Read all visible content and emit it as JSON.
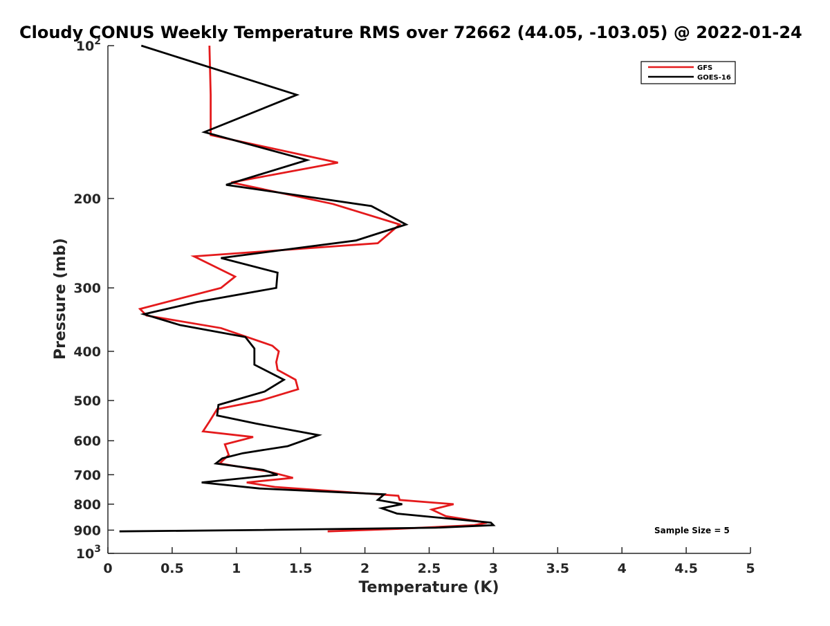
{
  "chart_data": {
    "type": "line",
    "title": "Cloudy CONUS Weekly Temperature RMS over 72662 (44.05, -103.05) @ 2022-01-24",
    "xlabel": "Temperature (K)",
    "ylabel": "Pressure (mb)",
    "xlim": [
      0,
      5
    ],
    "ylim": [
      100,
      1000
    ],
    "y_scale": "log",
    "y_reversed": true,
    "grid": false,
    "legend_position": "top-right",
    "x_ticks": [
      {
        "value": 0,
        "label": "0"
      },
      {
        "value": 0.5,
        "label": "0.5"
      },
      {
        "value": 1,
        "label": "1"
      },
      {
        "value": 1.5,
        "label": "1.5"
      },
      {
        "value": 2,
        "label": "2"
      },
      {
        "value": 2.5,
        "label": "2.5"
      },
      {
        "value": 3,
        "label": "3"
      },
      {
        "value": 3.5,
        "label": "3.5"
      },
      {
        "value": 4,
        "label": "4"
      },
      {
        "value": 4.5,
        "label": "4.5"
      },
      {
        "value": 5,
        "label": "5"
      }
    ],
    "y_ticks": [
      {
        "value": 100,
        "base": "10",
        "exp": "2"
      },
      {
        "value": 200,
        "label": "200"
      },
      {
        "value": 300,
        "label": "300"
      },
      {
        "value": 400,
        "label": "400"
      },
      {
        "value": 500,
        "label": "500"
      },
      {
        "value": 600,
        "label": "600"
      },
      {
        "value": 700,
        "label": "700"
      },
      {
        "value": 800,
        "label": "800"
      },
      {
        "value": 900,
        "label": "900"
      },
      {
        "value": 1000,
        "base": "10",
        "exp": "3"
      }
    ],
    "series": [
      {
        "name": "GFS",
        "color": "#e41a1c",
        "points": [
          [
            0.79,
            100
          ],
          [
            0.8,
            125
          ],
          [
            0.8,
            150
          ],
          [
            1.79,
            170
          ],
          [
            0.96,
            186
          ],
          [
            1.75,
            205
          ],
          [
            2.27,
            225
          ],
          [
            2.1,
            245
          ],
          [
            0.67,
            260
          ],
          [
            0.99,
            285
          ],
          [
            0.88,
            300
          ],
          [
            0.25,
            330
          ],
          [
            0.3,
            340
          ],
          [
            0.88,
            360
          ],
          [
            1.28,
            390
          ],
          [
            1.33,
            400
          ],
          [
            1.31,
            420
          ],
          [
            1.32,
            435
          ],
          [
            1.46,
            455
          ],
          [
            1.48,
            475
          ],
          [
            1.19,
            500
          ],
          [
            0.85,
            520
          ],
          [
            0.79,
            550
          ],
          [
            0.74,
            575
          ],
          [
            1.13,
            590
          ],
          [
            0.91,
            610
          ],
          [
            0.94,
            640
          ],
          [
            0.87,
            665
          ],
          [
            1.25,
            690
          ],
          [
            1.44,
            710
          ],
          [
            1.08,
            725
          ],
          [
            1.3,
            740
          ],
          [
            2.26,
            770
          ],
          [
            2.27,
            785
          ],
          [
            2.69,
            800
          ],
          [
            2.52,
            820
          ],
          [
            2.63,
            845
          ],
          [
            2.95,
            870
          ],
          [
            2.85,
            880
          ],
          [
            2.25,
            895
          ],
          [
            1.71,
            905
          ]
        ]
      },
      {
        "name": "GOES-16",
        "color": "#000000",
        "points": [
          [
            0.26,
            100
          ],
          [
            1.47,
            125
          ],
          [
            0.75,
            148
          ],
          [
            1.55,
            168
          ],
          [
            0.92,
            188
          ],
          [
            2.05,
            207
          ],
          [
            2.32,
            225
          ],
          [
            1.93,
            242
          ],
          [
            0.88,
            262
          ],
          [
            1.32,
            280
          ],
          [
            1.31,
            300
          ],
          [
            0.69,
            320
          ],
          [
            0.28,
            338
          ],
          [
            0.56,
            355
          ],
          [
            1.07,
            375
          ],
          [
            1.14,
            395
          ],
          [
            1.14,
            425
          ],
          [
            1.37,
            455
          ],
          [
            1.22,
            480
          ],
          [
            0.86,
            510
          ],
          [
            0.85,
            535
          ],
          [
            1.15,
            555
          ],
          [
            1.64,
            585
          ],
          [
            1.4,
            615
          ],
          [
            1.05,
            635
          ],
          [
            0.89,
            650
          ],
          [
            0.84,
            665
          ],
          [
            1.21,
            685
          ],
          [
            1.32,
            700
          ],
          [
            0.73,
            725
          ],
          [
            1.18,
            745
          ],
          [
            2.15,
            765
          ],
          [
            2.1,
            785
          ],
          [
            2.29,
            800
          ],
          [
            2.13,
            815
          ],
          [
            2.25,
            835
          ],
          [
            2.98,
            870
          ],
          [
            3.0,
            880
          ],
          [
            2.55,
            890
          ],
          [
            1.1,
            900
          ],
          [
            0.09,
            905
          ]
        ]
      }
    ],
    "annotations": [
      {
        "text": "Sample Size = 5",
        "x": 4.2,
        "y": 900
      }
    ]
  }
}
